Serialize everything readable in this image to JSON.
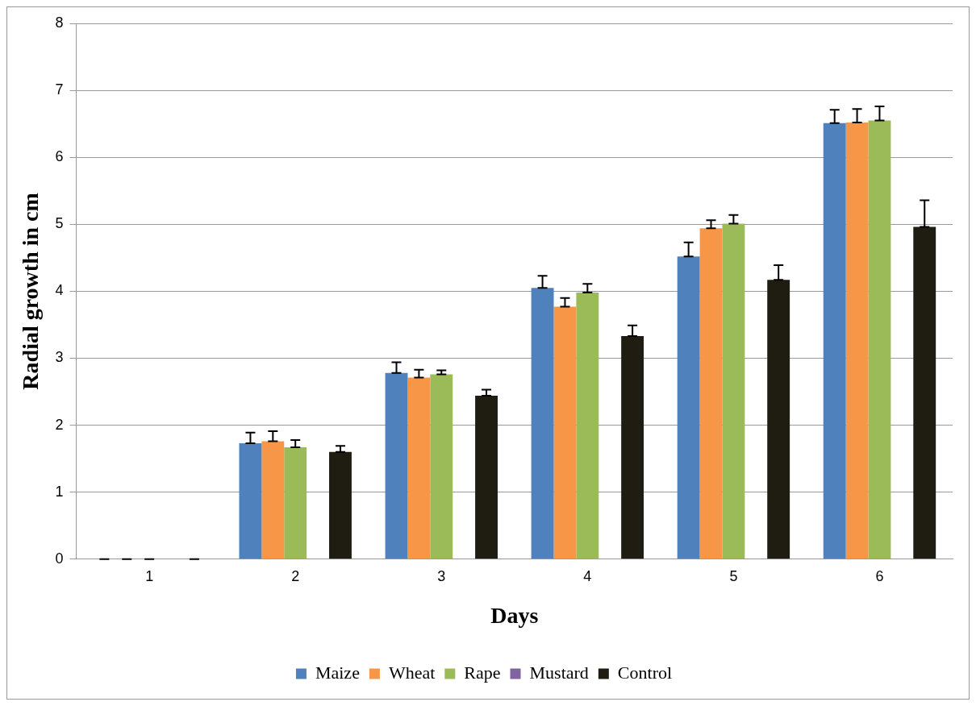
{
  "chart_data": {
    "type": "bar",
    "xlabel": "Days",
    "ylabel": "Radial growth in cm",
    "categories": [
      "1",
      "2",
      "3",
      "4",
      "5",
      "6"
    ],
    "series": [
      {
        "name": "Maize",
        "color": "#4f81bd",
        "values": [
          0,
          1.73,
          2.78,
          4.05,
          4.52,
          6.51
        ],
        "errors": [
          [
            0,
            0
          ],
          [
            1.73,
            1.89
          ],
          [
            2.78,
            2.94
          ],
          [
            4.05,
            4.23
          ],
          [
            4.52,
            4.73
          ],
          [
            6.51,
            6.71
          ]
        ]
      },
      {
        "name": "Wheat",
        "color": "#f79646",
        "values": [
          0,
          1.76,
          2.71,
          3.77,
          4.94,
          6.52
        ],
        "errors": [
          [
            0,
            0
          ],
          [
            1.76,
            1.91
          ],
          [
            2.71,
            2.83
          ],
          [
            3.77,
            3.9
          ],
          [
            4.94,
            5.06
          ],
          [
            6.52,
            6.72
          ]
        ]
      },
      {
        "name": "Rape",
        "color": "#9bbb59",
        "values": [
          0,
          1.67,
          2.76,
          3.98,
          5.01,
          6.55
        ],
        "errors": [
          [
            0,
            0
          ],
          [
            1.67,
            1.78
          ],
          [
            2.76,
            2.82
          ],
          [
            3.98,
            4.11
          ],
          [
            5.01,
            5.14
          ],
          [
            6.55,
            6.76
          ]
        ]
      },
      {
        "name": "Mustard",
        "color": "#8064a2",
        "values": [
          0,
          0,
          0,
          0,
          0,
          0
        ]
      },
      {
        "name": "Control",
        "color": "#1f1d12",
        "values": [
          0,
          1.6,
          2.44,
          3.33,
          4.17,
          4.96
        ],
        "errors": [
          [
            0,
            0
          ],
          [
            1.6,
            1.69
          ],
          [
            2.44,
            2.53
          ],
          [
            3.33,
            3.49
          ],
          [
            4.17,
            4.39
          ],
          [
            4.96,
            5.36
          ]
        ]
      }
    ],
    "ylim": [
      0,
      8
    ],
    "yticks": [
      0,
      1,
      2,
      3,
      4,
      5,
      6,
      7,
      8
    ],
    "grid": "y",
    "legend": "bottom"
  }
}
